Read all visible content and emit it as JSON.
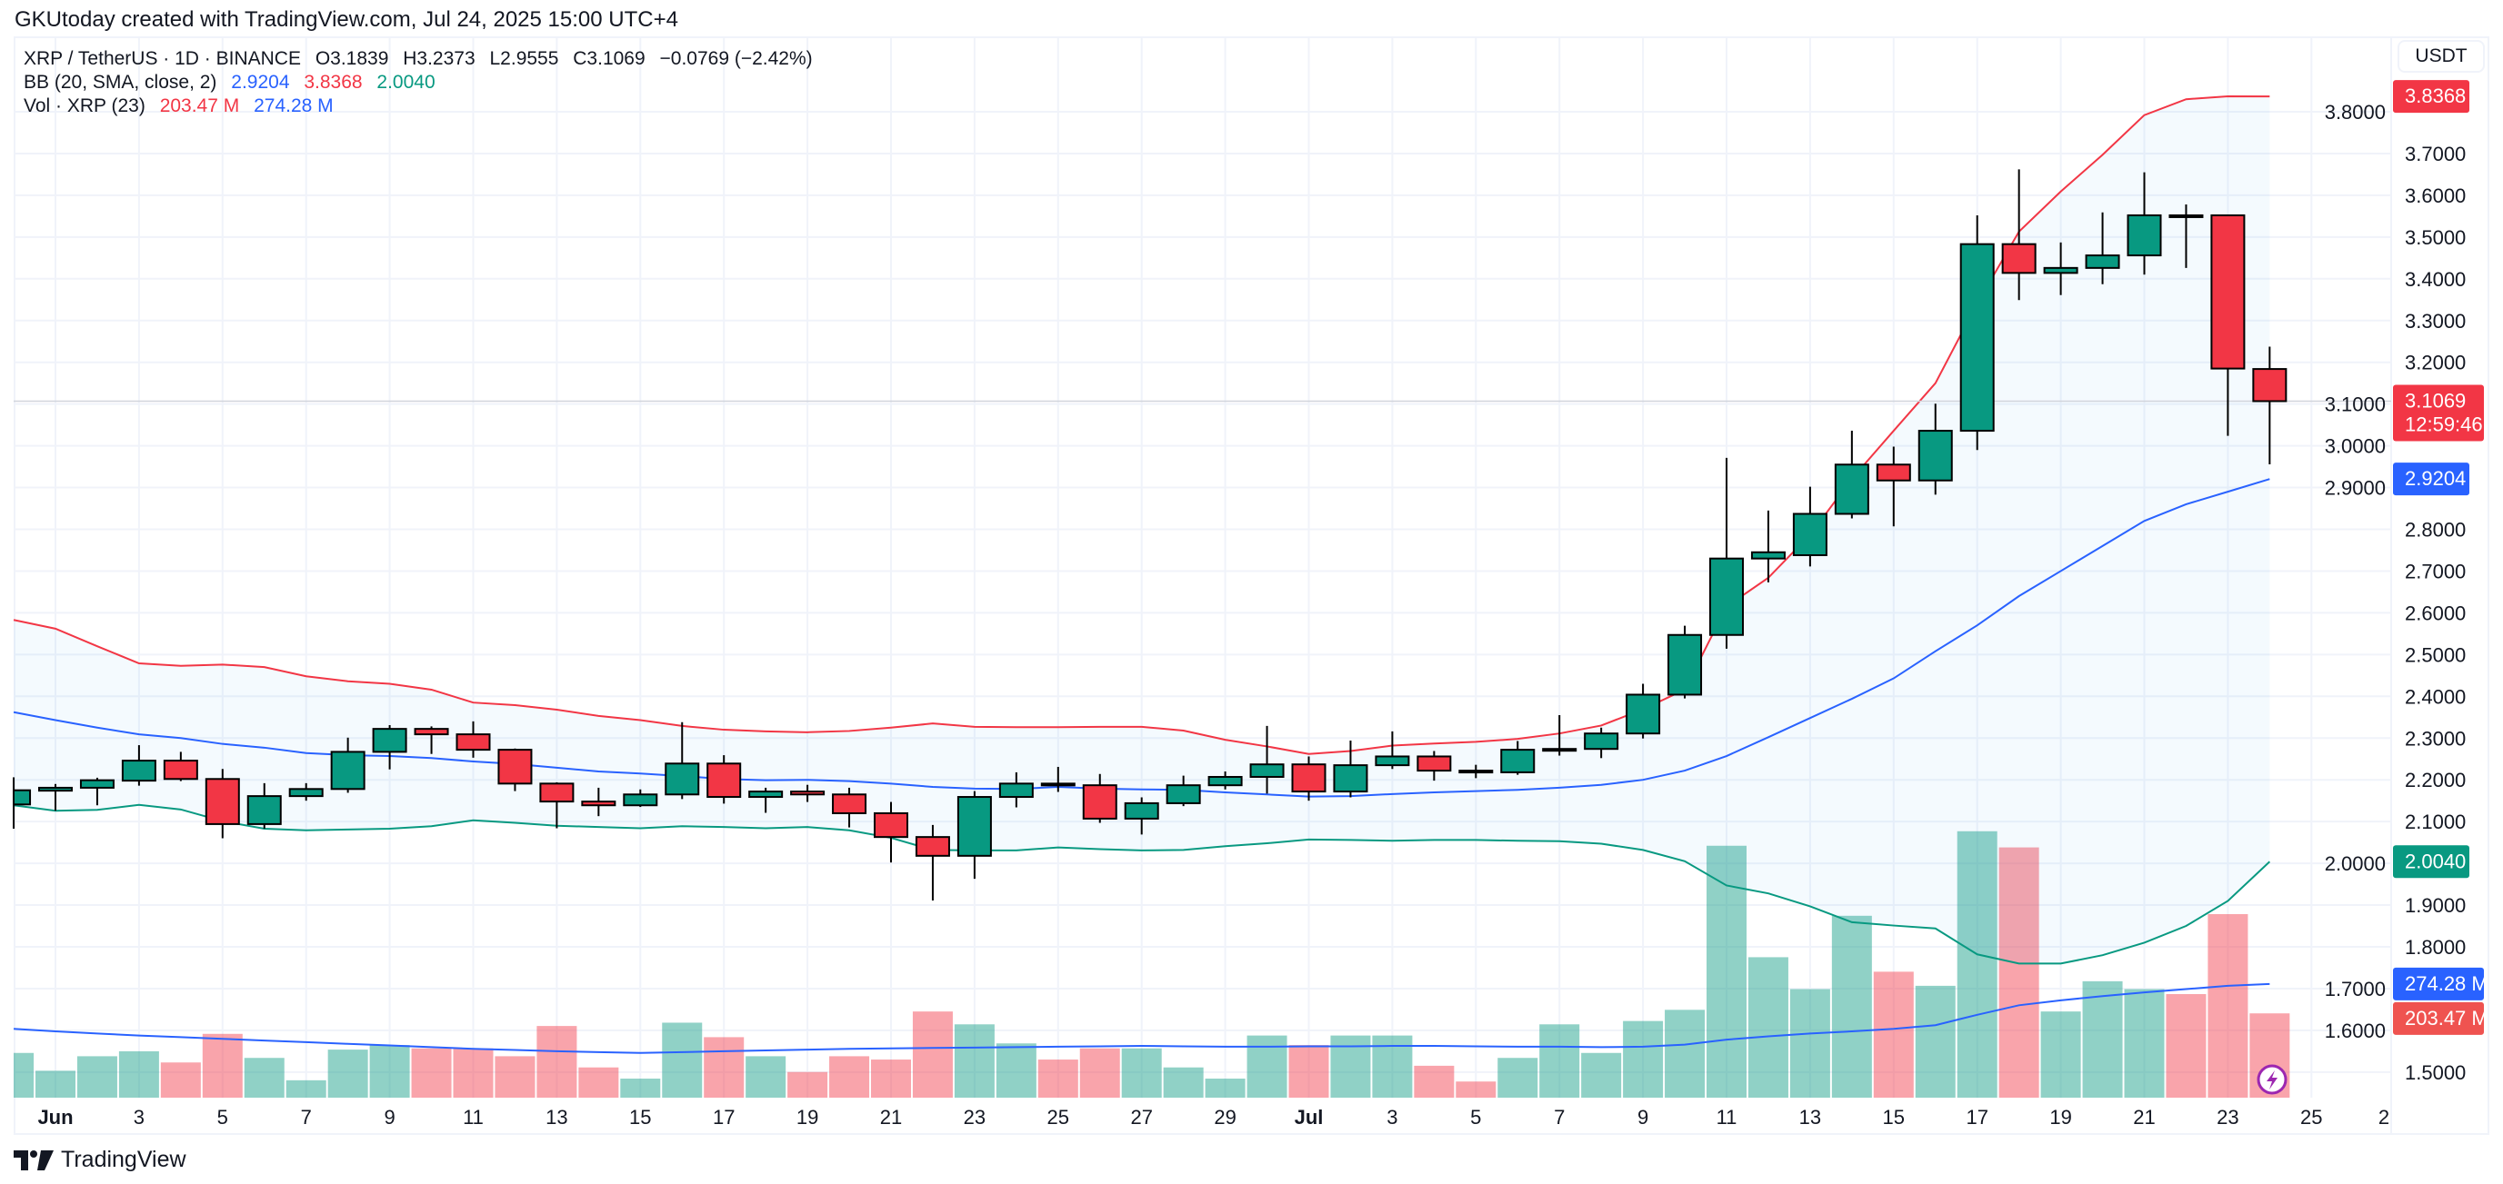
{
  "header": {
    "title": "GKUtoday created with TradingView.com, Jul 24, 2025 15:00 UTC+4"
  },
  "legend": {
    "symbol": "XRP / TetherUS · 1D · BINANCE",
    "open": "O3.1839",
    "high": "H3.2373",
    "low": "L2.9555",
    "close": "C3.1069",
    "change": "−0.0769 (−2.42%)",
    "bb_label": "BB (20, SMA, close, 2)",
    "bb_basis": "2.9204",
    "bb_upper": "3.8368",
    "bb_lower": "2.0040",
    "vol_label": "Vol · XRP (23)",
    "vol_value": "203.47 M",
    "vol_ma": "274.28 M"
  },
  "currency": "USDT",
  "footer": {
    "brand": "TradingView"
  },
  "colors": {
    "up": "#089981",
    "down": "#f23645",
    "basis": "#2962ff",
    "upper": "#f23645",
    "lower": "#089981"
  },
  "chart_data": {
    "type": "candlestick",
    "title": "XRP / TetherUS · 1D · BINANCE",
    "ylabel": "USDT",
    "ylim": [
      1.45,
      3.9
    ],
    "y_ticks": [
      "3.8000",
      "3.7000",
      "3.6000",
      "3.5000",
      "3.4000",
      "3.3000",
      "3.2000",
      "3.1000",
      "3.0000",
      "2.9000",
      "2.8000",
      "2.7000",
      "2.6000",
      "2.5000",
      "2.4000",
      "2.3000",
      "2.2000",
      "2.1000",
      "2.0000",
      "1.9000",
      "1.8000",
      "1.7000",
      "1.6000",
      "1.5000"
    ],
    "x_ticks": [
      {
        "day": 1,
        "label": "Jun",
        "bold": true
      },
      {
        "day": 3,
        "label": "3"
      },
      {
        "day": 5,
        "label": "5"
      },
      {
        "day": 7,
        "label": "7"
      },
      {
        "day": 9,
        "label": "9"
      },
      {
        "day": 11,
        "label": "11"
      },
      {
        "day": 13,
        "label": "13"
      },
      {
        "day": 15,
        "label": "15"
      },
      {
        "day": 17,
        "label": "17"
      },
      {
        "day": 19,
        "label": "19"
      },
      {
        "day": 21,
        "label": "21"
      },
      {
        "day": 23,
        "label": "23"
      },
      {
        "day": 25,
        "label": "25"
      },
      {
        "day": 27,
        "label": "27"
      },
      {
        "day": 29,
        "label": "29"
      },
      {
        "day": 31,
        "label": "Jul",
        "bold": true
      },
      {
        "day": 33,
        "label": "3"
      },
      {
        "day": 35,
        "label": "5"
      },
      {
        "day": 37,
        "label": "7"
      },
      {
        "day": 39,
        "label": "9"
      },
      {
        "day": 41,
        "label": "11"
      },
      {
        "day": 43,
        "label": "13"
      },
      {
        "day": 45,
        "label": "15"
      },
      {
        "day": 47,
        "label": "17"
      },
      {
        "day": 49,
        "label": "19"
      },
      {
        "day": 51,
        "label": "21"
      },
      {
        "day": 53,
        "label": "23"
      },
      {
        "day": 55,
        "label": "25"
      },
      {
        "day": 57,
        "label": "2"
      }
    ],
    "candles": [
      [
        "May 31",
        2.141,
        2.206,
        2.083,
        2.175
      ],
      [
        "Jun 1",
        2.174,
        2.19,
        2.126,
        2.181
      ],
      [
        "Jun 2",
        2.181,
        2.205,
        2.139,
        2.199
      ],
      [
        "Jun 3",
        2.198,
        2.283,
        2.186,
        2.246
      ],
      [
        "Jun 4",
        2.246,
        2.267,
        2.197,
        2.202
      ],
      [
        "Jun 5",
        2.202,
        2.226,
        2.06,
        2.094
      ],
      [
        "Jun 6",
        2.094,
        2.192,
        2.083,
        2.161
      ],
      [
        "Jun 7",
        2.161,
        2.192,
        2.15,
        2.178
      ],
      [
        "Jun 8",
        2.178,
        2.301,
        2.169,
        2.267
      ],
      [
        "Jun 9",
        2.267,
        2.331,
        2.225,
        2.322
      ],
      [
        "Jun 10",
        2.322,
        2.328,
        2.262,
        2.309
      ],
      [
        "Jun 11",
        2.309,
        2.34,
        2.253,
        2.272
      ],
      [
        "Jun 12",
        2.272,
        2.275,
        2.173,
        2.191
      ],
      [
        "Jun 13",
        2.191,
        2.194,
        2.084,
        2.148
      ],
      [
        "Jun 14",
        2.148,
        2.181,
        2.113,
        2.139
      ],
      [
        "Jun 15",
        2.139,
        2.177,
        2.135,
        2.165
      ],
      [
        "Jun 16",
        2.165,
        2.338,
        2.154,
        2.239
      ],
      [
        "Jun 17",
        2.239,
        2.259,
        2.143,
        2.159
      ],
      [
        "Jun 18",
        2.159,
        2.181,
        2.121,
        2.172
      ],
      [
        "Jun 19",
        2.172,
        2.188,
        2.147,
        2.165
      ],
      [
        "Jun 20",
        2.165,
        2.181,
        2.086,
        2.12
      ],
      [
        "Jun 21",
        2.12,
        2.147,
        2.002,
        2.063
      ],
      [
        "Jun 22",
        2.063,
        2.092,
        1.911,
        2.018
      ],
      [
        "Jun 23",
        2.018,
        2.173,
        1.963,
        2.159
      ],
      [
        "Jun 24",
        2.159,
        2.218,
        2.134,
        2.191
      ],
      [
        "Jun 25",
        2.191,
        2.231,
        2.171,
        2.187
      ],
      [
        "Jun 26",
        2.187,
        2.214,
        2.097,
        2.107
      ],
      [
        "Jun 27",
        2.107,
        2.158,
        2.069,
        2.144
      ],
      [
        "Jun 28",
        2.144,
        2.21,
        2.137,
        2.187
      ],
      [
        "Jun 29",
        2.187,
        2.22,
        2.177,
        2.207
      ],
      [
        "Jun 30",
        2.207,
        2.329,
        2.167,
        2.237
      ],
      [
        "Jul 1",
        2.237,
        2.256,
        2.15,
        2.172
      ],
      [
        "Jul 2",
        2.172,
        2.294,
        2.158,
        2.235
      ],
      [
        "Jul 3",
        2.235,
        2.316,
        2.226,
        2.256
      ],
      [
        "Jul 4",
        2.256,
        2.269,
        2.198,
        2.222
      ],
      [
        "Jul 5",
        2.222,
        2.236,
        2.204,
        2.218
      ],
      [
        "Jul 6",
        2.218,
        2.293,
        2.212,
        2.272
      ],
      [
        "Jul 7",
        2.272,
        2.355,
        2.258,
        2.274
      ],
      [
        "Jul 8",
        2.274,
        2.325,
        2.252,
        2.311
      ],
      [
        "Jul 9",
        2.311,
        2.43,
        2.299,
        2.404
      ],
      [
        "Jul 10",
        2.404,
        2.569,
        2.395,
        2.547
      ],
      [
        "Jul 11",
        2.547,
        2.971,
        2.514,
        2.73
      ],
      [
        "Jul 12",
        2.73,
        2.845,
        2.673,
        2.745
      ],
      [
        "Jul 13",
        2.738,
        2.902,
        2.711,
        2.837
      ],
      [
        "Jul 14",
        2.837,
        3.036,
        2.826,
        2.955
      ],
      [
        "Jul 15",
        2.955,
        2.998,
        2.807,
        2.917
      ],
      [
        "Jul 16",
        2.917,
        3.101,
        2.883,
        3.036
      ],
      [
        "Jul 17",
        3.036,
        3.552,
        2.99,
        3.483
      ],
      [
        "Jul 18",
        3.483,
        3.662,
        3.349,
        3.414
      ],
      [
        "Jul 19",
        3.414,
        3.487,
        3.361,
        3.426
      ],
      [
        "Jul 20",
        3.426,
        3.559,
        3.387,
        3.456
      ],
      [
        "Jul 21",
        3.456,
        3.655,
        3.41,
        3.552
      ],
      [
        "Jul 22",
        3.552,
        3.578,
        3.426,
        3.548
      ],
      [
        "Jul 23",
        3.552,
        3.552,
        3.024,
        3.185
      ],
      [
        "Jul 24",
        3.1839,
        3.2373,
        2.9555,
        3.1069
      ]
    ],
    "bb_upper": [
      2.583,
      2.562,
      2.52,
      2.479,
      2.473,
      2.476,
      2.47,
      2.448,
      2.436,
      2.43,
      2.416,
      2.385,
      2.379,
      2.368,
      2.353,
      2.343,
      2.329,
      2.32,
      2.316,
      2.314,
      2.317,
      2.325,
      2.335,
      2.327,
      2.326,
      2.326,
      2.327,
      2.327,
      2.318,
      2.296,
      2.28,
      2.262,
      2.269,
      2.282,
      2.287,
      2.291,
      2.298,
      2.311,
      2.33,
      2.369,
      2.416,
      2.615,
      2.684,
      2.787,
      2.921,
      3.036,
      3.15,
      3.341,
      3.513,
      3.609,
      3.697,
      3.792,
      3.83,
      3.837,
      3.8368
    ],
    "bb_basis": [
      2.362,
      2.343,
      2.325,
      2.309,
      2.3,
      2.286,
      2.277,
      2.264,
      2.259,
      2.257,
      2.252,
      2.244,
      2.238,
      2.229,
      2.22,
      2.215,
      2.209,
      2.202,
      2.199,
      2.2,
      2.197,
      2.191,
      2.183,
      2.179,
      2.178,
      2.183,
      2.179,
      2.177,
      2.176,
      2.17,
      2.165,
      2.16,
      2.161,
      2.166,
      2.17,
      2.173,
      2.176,
      2.181,
      2.188,
      2.2,
      2.222,
      2.257,
      2.302,
      2.348,
      2.394,
      2.443,
      2.508,
      2.57,
      2.64,
      2.7,
      2.76,
      2.82,
      2.86,
      2.89,
      2.9204
    ],
    "bb_lower": [
      2.139,
      2.126,
      2.128,
      2.14,
      2.129,
      2.101,
      2.083,
      2.079,
      2.081,
      2.083,
      2.089,
      2.103,
      2.097,
      2.09,
      2.087,
      2.084,
      2.089,
      2.087,
      2.084,
      2.087,
      2.079,
      2.061,
      2.032,
      2.031,
      2.031,
      2.038,
      2.034,
      2.031,
      2.032,
      2.041,
      2.048,
      2.057,
      2.056,
      2.054,
      2.056,
      2.056,
      2.054,
      2.053,
      2.047,
      2.032,
      2.005,
      1.947,
      1.928,
      1.897,
      1.859,
      1.851,
      1.844,
      1.782,
      1.76,
      1.76,
      1.78,
      1.81,
      1.85,
      1.91,
      2.004
    ],
    "volume_m": [
      108,
      65,
      100,
      112,
      85,
      154,
      96,
      42,
      116,
      127,
      119,
      119,
      100,
      173,
      73,
      46,
      181,
      146,
      100,
      62,
      100,
      92,
      208,
      177,
      131,
      92,
      119,
      119,
      73,
      46,
      150,
      127,
      150,
      150,
      77,
      39,
      96,
      177,
      108,
      185,
      212,
      608,
      339,
      262,
      439,
      304,
      270,
      643,
      604,
      208,
      281,
      262,
      250,
      443,
      203.47
    ],
    "volume_ma_m": [
      166,
      160,
      155,
      150,
      146,
      142,
      138,
      134,
      130,
      126,
      122,
      118,
      115,
      112,
      110,
      108,
      110,
      112,
      114,
      116,
      118,
      119,
      120,
      121,
      122,
      123,
      124,
      125,
      124,
      123,
      123,
      124,
      124,
      125,
      125,
      124,
      123,
      123,
      122,
      123,
      128,
      140,
      148,
      155,
      160,
      166,
      175,
      200,
      223,
      235,
      245,
      254,
      262,
      270,
      274.28
    ],
    "last_price": "3.1069",
    "countdown": "12:59:46",
    "tags": {
      "upper": "3.8368",
      "basis": "2.9204",
      "lower": "2.0040",
      "vol_ma": "274.28 M",
      "vol": "203.47 M"
    }
  }
}
